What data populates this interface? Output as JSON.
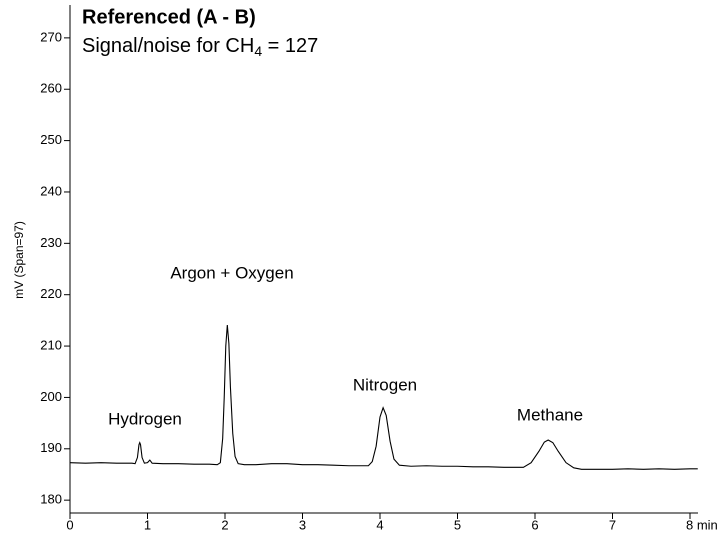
{
  "chart_data": {
    "type": "line",
    "title": "Referenced (A - B)",
    "subtitle": [
      "Signal/noise for CH",
      "4",
      " = 127"
    ],
    "ylabel": "mV (Span=97)",
    "annotations": [
      "Hydrogen",
      "Argon + Oxygen",
      "Nitrogen",
      "Methane"
    ],
    "color": "#000000",
    "x": [
      0,
      0.2,
      0.4,
      0.6,
      0.8,
      0.84,
      0.87,
      0.89,
      0.9,
      0.91,
      0.93,
      0.96,
      1.0,
      1.03,
      1.06,
      1.2,
      1.4,
      1.6,
      1.8,
      1.9,
      1.94,
      1.97,
      1.99,
      2.01,
      2.03,
      2.05,
      2.07,
      2.1,
      2.13,
      2.17,
      2.25,
      2.4,
      2.6,
      2.8,
      3.0,
      3.2,
      3.4,
      3.6,
      3.75,
      3.85,
      3.9,
      3.95,
      4.0,
      4.04,
      4.08,
      4.13,
      4.18,
      4.25,
      4.4,
      4.6,
      4.8,
      5.0,
      5.2,
      5.4,
      5.6,
      5.75,
      5.85,
      5.95,
      6.05,
      6.12,
      6.17,
      6.23,
      6.3,
      6.4,
      6.5,
      6.6,
      6.8,
      7.0,
      7.2,
      7.4,
      7.6,
      7.8,
      8.0,
      8.1
    ],
    "values": [
      187.3,
      187.2,
      187.3,
      187.2,
      187.2,
      187.1,
      188.3,
      190.8,
      191.2,
      190.8,
      188.3,
      187.2,
      187.3,
      187.8,
      187.2,
      187.1,
      187.1,
      187.0,
      187.0,
      186.9,
      187.3,
      192,
      200,
      210,
      214.1,
      210.5,
      202,
      193,
      188.5,
      187.1,
      186.9,
      186.9,
      187.1,
      187.1,
      186.9,
      186.9,
      186.8,
      186.7,
      186.7,
      186.7,
      187.5,
      190.5,
      196.2,
      198,
      196.5,
      191.5,
      188,
      186.8,
      186.6,
      186.7,
      186.6,
      186.6,
      186.5,
      186.5,
      186.4,
      186.4,
      186.4,
      187.3,
      189.5,
      191.3,
      191.7,
      191.2,
      189.5,
      187.3,
      186.3,
      186.0,
      186.0,
      186.0,
      186.1,
      186.0,
      186.1,
      186.0,
      186.1,
      186.1
    ],
    "xlim": [
      0,
      8.1
    ],
    "xticks": [
      0,
      1,
      2,
      3,
      4,
      5,
      6,
      7,
      {
        "value": 8,
        "label": "8 min"
      }
    ],
    "ylim": [
      177.5,
      276.4
    ],
    "yticks": [
      180,
      190,
      200,
      210,
      220,
      230,
      240,
      250,
      260,
      270
    ]
  }
}
